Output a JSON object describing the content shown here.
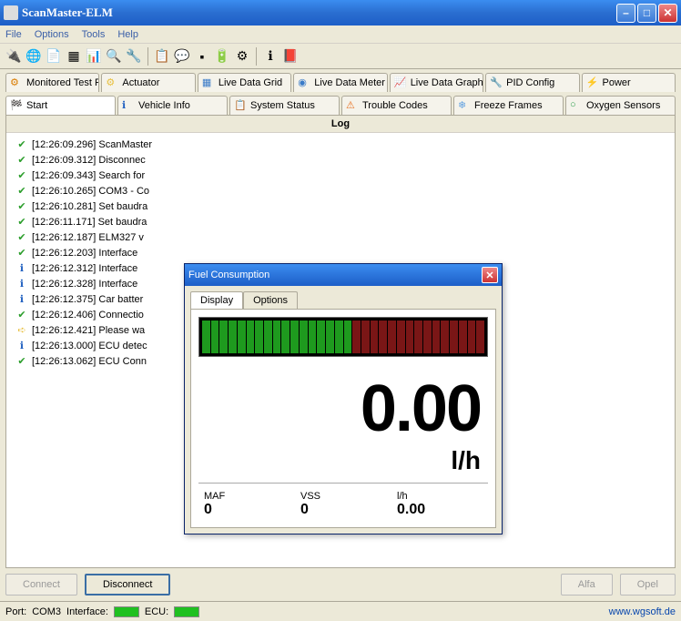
{
  "window": {
    "title": "ScanMaster-ELM"
  },
  "menu": [
    "File",
    "Options",
    "Tools",
    "Help"
  ],
  "tabs_row1": [
    {
      "icon": "⚙",
      "color": "#d97b00",
      "label": "Monitored Test Results"
    },
    {
      "icon": "⚙",
      "color": "#e8c040",
      "label": "Actuator"
    },
    {
      "icon": "▦",
      "color": "#3a7bc8",
      "label": "Live Data Grid"
    },
    {
      "icon": "◉",
      "color": "#3a7bc8",
      "label": "Live Data Meter"
    },
    {
      "icon": "📈",
      "color": "#3a7bc8",
      "label": "Live Data Graph"
    },
    {
      "icon": "🔧",
      "color": "#888",
      "label": "PID Config"
    },
    {
      "icon": "⚡",
      "color": "#888",
      "label": "Power"
    }
  ],
  "tabs_row2": [
    {
      "icon": "🏁",
      "color": "#e8a020",
      "label": "Start",
      "active": true
    },
    {
      "icon": "ℹ",
      "color": "#2060c0",
      "label": "Vehicle Info"
    },
    {
      "icon": "📋",
      "color": "#c03030",
      "label": "System Status"
    },
    {
      "icon": "⚠",
      "color": "#e87020",
      "label": "Trouble Codes"
    },
    {
      "icon": "❄",
      "color": "#60a0e0",
      "label": "Freeze Frames"
    },
    {
      "icon": "○",
      "color": "#30a050",
      "label": "Oxygen Sensors"
    }
  ],
  "log": {
    "header": "Log",
    "items": [
      {
        "t": "ok",
        "text": "[12:26:09.296] ScanMaster"
      },
      {
        "t": "ok",
        "text": "[12:26:09.312] Disconnec"
      },
      {
        "t": "ok",
        "text": "[12:26:09.343] Search for"
      },
      {
        "t": "ok",
        "text": "[12:26:10.265] COM3 - Co"
      },
      {
        "t": "ok",
        "text": "[12:26:10.281] Set baudra"
      },
      {
        "t": "ok",
        "text": "[12:26:11.171] Set baudra"
      },
      {
        "t": "ok",
        "text": "[12:26:12.187] ELM327 v"
      },
      {
        "t": "ok",
        "text": "[12:26:12.203] Interface"
      },
      {
        "t": "info",
        "text": "[12:26:12.312] Interface"
      },
      {
        "t": "info",
        "text": "[12:26:12.328] Interface"
      },
      {
        "t": "info",
        "text": "[12:26:12.375] Car batter"
      },
      {
        "t": "ok",
        "text": "[12:26:12.406] Connectio"
      },
      {
        "t": "wait",
        "text": "[12:26:12.421] Please wa"
      },
      {
        "t": "info",
        "text": "[12:26:13.000] ECU detec"
      },
      {
        "t": "ok",
        "text": "[12:26:13.062] ECU Conn"
      }
    ]
  },
  "buttons": {
    "connect": "Connect",
    "disconnect": "Disconnect",
    "alfa": "Alfa",
    "opel": "Opel"
  },
  "status": {
    "port_label": "Port:",
    "port": "COM3",
    "iface_label": "Interface:",
    "iface_color": "#20c020",
    "ecu_label": "ECU:",
    "ecu_color": "#20c020",
    "link": "www.wgsoft.de"
  },
  "modal": {
    "title": "Fuel Consumption",
    "tabs": {
      "display": "Display",
      "options": "Options"
    },
    "led": {
      "segments": 32,
      "green_count": 17,
      "green": "#1e9a1e",
      "dark_green": "#0a3a0a",
      "red": "#7a1616"
    },
    "value": "0.00",
    "unit": "l/h",
    "readings": [
      {
        "label": "MAF",
        "value": "0"
      },
      {
        "label": "VSS",
        "value": "0"
      },
      {
        "label": "l/h",
        "value": "0.00"
      }
    ]
  }
}
